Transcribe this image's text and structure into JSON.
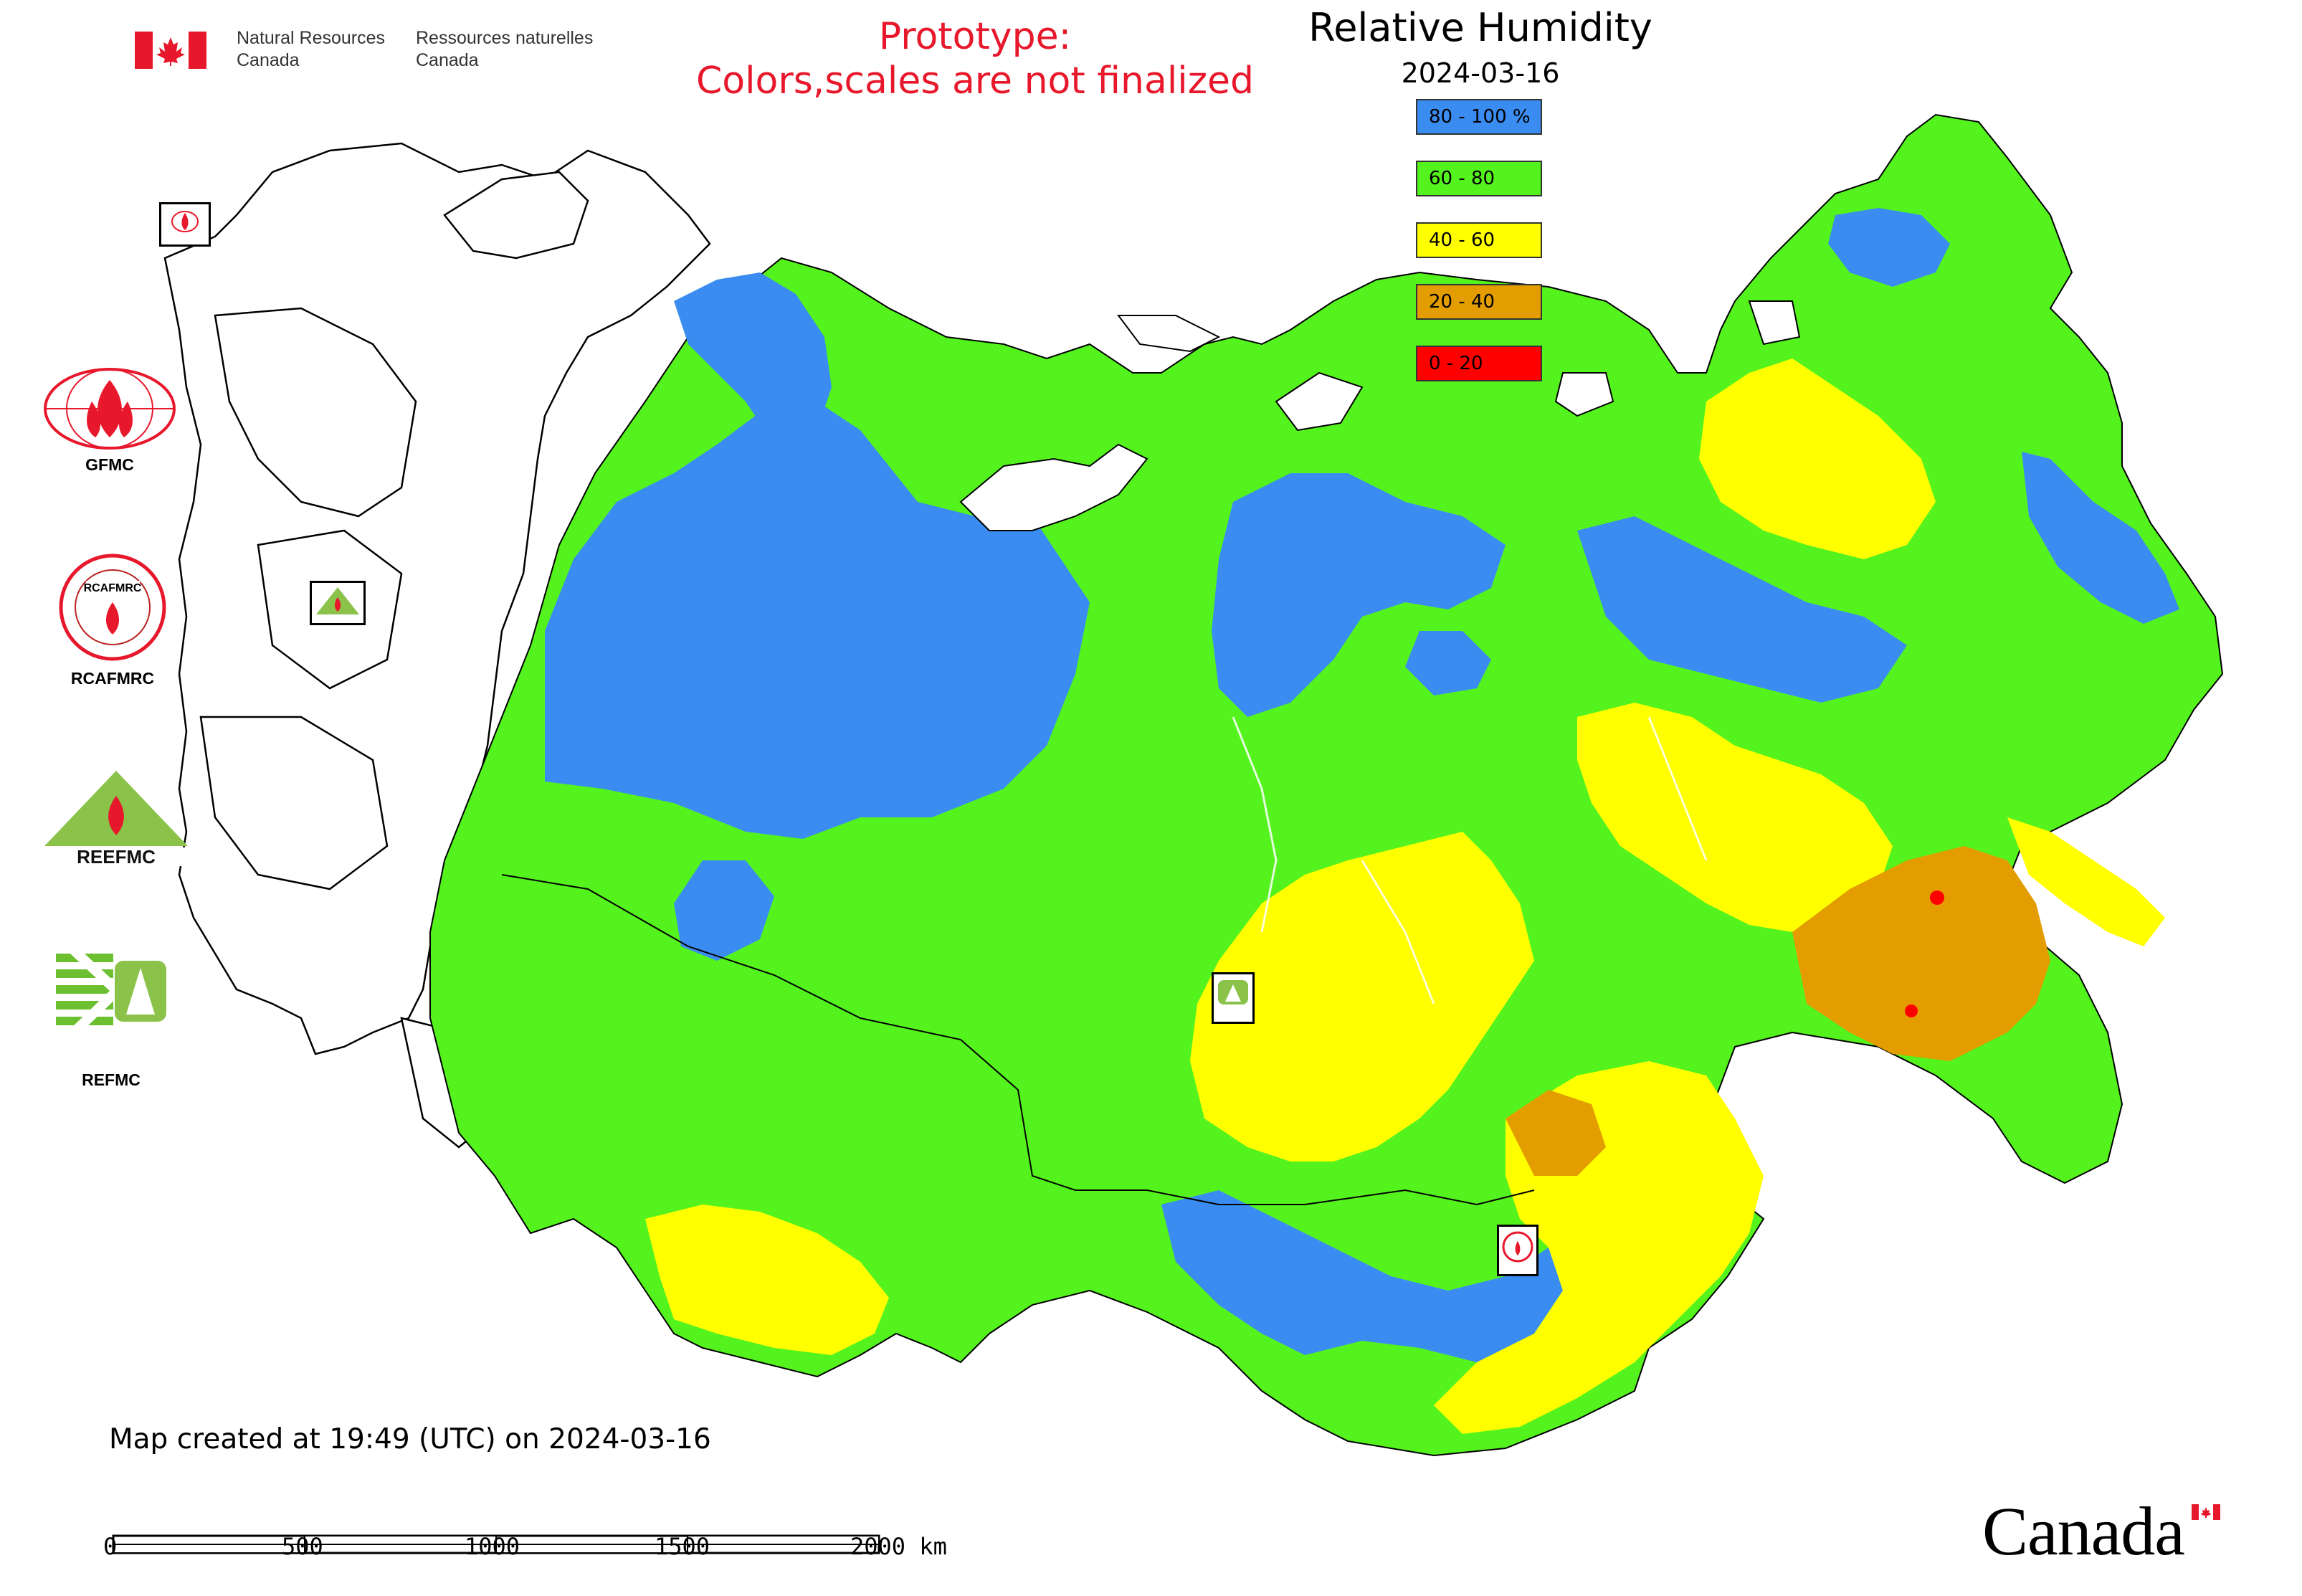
{
  "header": {
    "dept_en": "Natural Resources\nCanada",
    "dept_fr": "Ressources naturelles\nCanada",
    "prototype_line1": "Prototype:",
    "prototype_line2": "Colors,scales are not finalized"
  },
  "legend": {
    "title": "Relative Humidity",
    "date": "2024-03-16",
    "items": [
      {
        "label": "80 - 100 %",
        "color": "#3b8cf0"
      },
      {
        "label": "60 - 80",
        "color": "#55f31e"
      },
      {
        "label": "40 - 60",
        "color": "#ffff00"
      },
      {
        "label": "20 - 40",
        "color": "#e39d00"
      },
      {
        "label": "0 - 20",
        "color": "#ff0000"
      }
    ]
  },
  "partners": [
    {
      "label": "GFMC"
    },
    {
      "label": "RCAFMRC"
    },
    {
      "label": "REEFMC"
    },
    {
      "label": "REFMC"
    }
  ],
  "map_markers": [
    {
      "name": "GFMC"
    },
    {
      "name": "REEFMC"
    },
    {
      "name": "REFMC"
    },
    {
      "name": "RCAFMRC"
    }
  ],
  "footer": {
    "created": "Map created at 19:49 (UTC) on 2024-03-16",
    "scale_labels": [
      "0",
      "500",
      "1000",
      "1500",
      "2000 km"
    ],
    "wordmark": "Canada"
  }
}
